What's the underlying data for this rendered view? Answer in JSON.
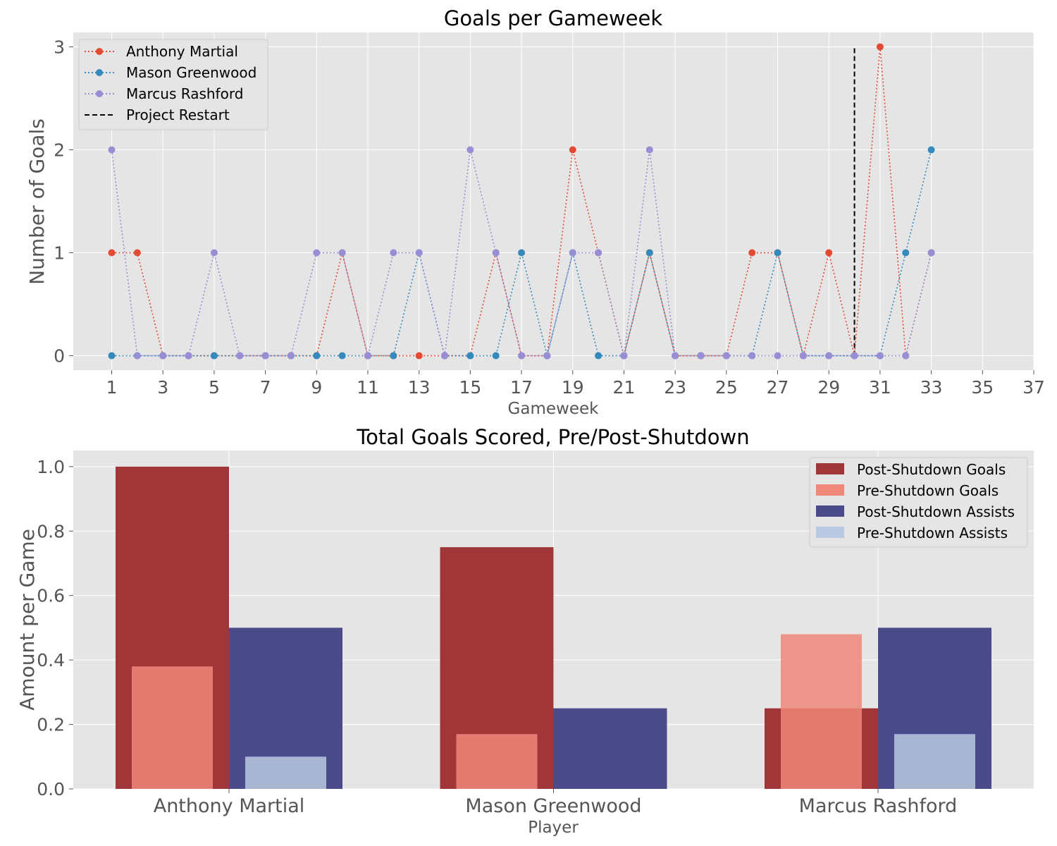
{
  "chart_data": [
    {
      "type": "line",
      "title": "Goals per Gameweek",
      "xlabel": "Gameweek",
      "ylabel": "Number of Goals",
      "xlim": [
        -0.5,
        37
      ],
      "ylim": [
        -0.14,
        3.14
      ],
      "xticks": [
        1,
        3,
        5,
        7,
        9,
        11,
        13,
        15,
        17,
        19,
        21,
        23,
        25,
        27,
        29,
        31,
        33,
        35,
        37
      ],
      "yticks": [
        0,
        1,
        2,
        3
      ],
      "grid": true,
      "legend_position": "top-left",
      "x": [
        1,
        2,
        3,
        4,
        5,
        6,
        7,
        8,
        9,
        10,
        11,
        12,
        13,
        14,
        15,
        16,
        17,
        18,
        19,
        20,
        21,
        22,
        23,
        24,
        25,
        26,
        27,
        28,
        29,
        30,
        31,
        32,
        33
      ],
      "series": [
        {
          "name": "Anthony Martial",
          "color": "#e24a33",
          "style": "dotted",
          "values": [
            1,
            1,
            0,
            0,
            0,
            0,
            0,
            0,
            0,
            1,
            0,
            0,
            0,
            0,
            0,
            1,
            0,
            0,
            2,
            1,
            0,
            1,
            0,
            0,
            0,
            1,
            1,
            0,
            1,
            0,
            3,
            0,
            1
          ]
        },
        {
          "name": "Mason Greenwood",
          "color": "#348abd",
          "style": "dotted",
          "values": [
            0,
            0,
            0,
            0,
            0,
            0,
            0,
            0,
            0,
            0,
            0,
            0,
            1,
            0,
            0,
            0,
            1,
            0,
            1,
            0,
            0,
            1,
            0,
            0,
            0,
            0,
            1,
            0,
            0,
            0,
            0,
            1,
            2
          ]
        },
        {
          "name": "Marcus Rashford",
          "color": "#988ed5",
          "style": "dotted",
          "values": [
            2,
            0,
            0,
            0,
            1,
            0,
            0,
            0,
            1,
            1,
            0,
            1,
            1,
            0,
            2,
            1,
            0,
            0,
            1,
            1,
            0,
            2,
            0,
            0,
            0,
            0,
            0,
            0,
            0,
            0,
            0,
            0,
            1
          ]
        }
      ],
      "vline": {
        "name": "Project Restart",
        "x": 30,
        "y_range": [
          0,
          3
        ],
        "color": "#000000",
        "style": "dashed"
      }
    },
    {
      "type": "bar",
      "title": "Total Goals Scored, Pre/Post-Shutdown",
      "xlabel": "Player",
      "ylabel": "Amount per Game",
      "ylim": [
        0,
        1.05
      ],
      "yticks": [
        0.0,
        0.2,
        0.4,
        0.6,
        0.8,
        1.0
      ],
      "ytick_labels": [
        "0.0",
        "0.2",
        "0.4",
        "0.6",
        "0.8",
        "1.0"
      ],
      "grid": true,
      "legend_position": "top-right",
      "categories": [
        "Anthony Martial",
        "Mason Greenwood",
        "Marcus Rashford"
      ],
      "series": [
        {
          "name": "Post-Shutdown Goals",
          "color": "#a03638",
          "group": "goals",
          "layer": "wide",
          "values": [
            1.0,
            0.75,
            0.25
          ]
        },
        {
          "name": "Pre-Shutdown Goals",
          "color": "#f0877b",
          "group": "goals",
          "layer": "narrow",
          "values": [
            0.38,
            0.17,
            0.48
          ]
        },
        {
          "name": "Post-Shutdown Assists",
          "color": "#4b4a8b",
          "group": "assists",
          "layer": "wide",
          "values": [
            0.5,
            0.25,
            0.5
          ]
        },
        {
          "name": "Pre-Shutdown Assists",
          "color": "#b9c9e1",
          "group": "assists",
          "layer": "narrow",
          "values": [
            0.1,
            0.0,
            0.17
          ]
        }
      ]
    }
  ]
}
